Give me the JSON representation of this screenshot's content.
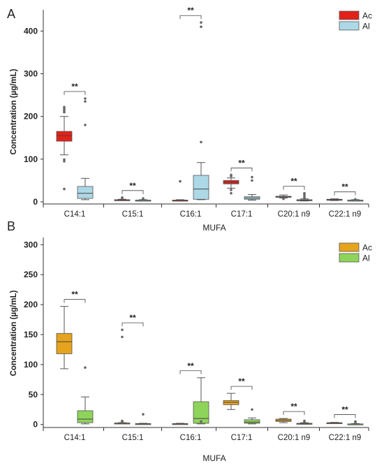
{
  "chart_data": [
    {
      "panel": "A",
      "type": "box",
      "xlabel": "MUFA",
      "ylabel": "Concentration (µg/mL)",
      "ylim": [
        -5,
        440
      ],
      "yticks": [
        0,
        100,
        200,
        300,
        400
      ],
      "categories": [
        "C14:1",
        "C15:1",
        "C16:1",
        "C17:1",
        "C20:1 n9",
        "C22:1 n9"
      ],
      "legend_position": "top-right",
      "significance": [
        "**",
        "**",
        "**",
        "**",
        "**",
        "**"
      ],
      "series": [
        {
          "name": "Ac",
          "color": "#e32119",
          "boxes": [
            {
              "min": 110,
              "q1": 142,
              "median": 155,
              "q3": 165,
              "max": 200,
              "outliers": [
                30,
                95,
                99,
                210,
                214,
                218,
                222
              ]
            },
            {
              "min": 3,
              "q1": 4,
              "median": 4.5,
              "q3": 5,
              "max": 6,
              "outliers": [
                8,
                10
              ]
            },
            {
              "min": 2,
              "q1": 3,
              "median": 3.5,
              "q3": 4,
              "max": 5,
              "outliers": [
                48
              ]
            },
            {
              "min": 32,
              "q1": 42,
              "median": 46,
              "q3": 50,
              "max": 56,
              "outliers": [
                20,
                28,
                60,
                63
              ]
            },
            {
              "min": 9,
              "q1": 11,
              "median": 12,
              "q3": 13,
              "max": 16,
              "outliers": [
                7
              ]
            },
            {
              "min": 3,
              "q1": 4,
              "median": 5,
              "q3": 6,
              "max": 7,
              "outliers": []
            }
          ]
        },
        {
          "name": "Al",
          "color": "#add8e6",
          "boxes": [
            {
              "min": 5,
              "q1": 8,
              "median": 20,
              "q3": 36,
              "max": 55,
              "outliers": [
                180,
                235,
                242
              ]
            },
            {
              "min": 2,
              "q1": 3,
              "median": 3.5,
              "q3": 4,
              "max": 5,
              "outliers": [
                6,
                8
              ]
            },
            {
              "min": 5,
              "q1": 6,
              "median": 30,
              "q3": 62,
              "max": 92,
              "outliers": [
                140,
                410,
                420
              ]
            },
            {
              "min": 4,
              "q1": 6,
              "median": 9,
              "q3": 12,
              "max": 17,
              "outliers": [
                50,
                58
              ]
            },
            {
              "min": 2,
              "q1": 3,
              "median": 4,
              "q3": 5,
              "max": 7,
              "outliers": [
                10,
                14,
                18,
                20
              ]
            },
            {
              "min": 2,
              "q1": 3,
              "median": 3.5,
              "q3": 4,
              "max": 5,
              "outliers": [
                6
              ]
            }
          ]
        }
      ]
    },
    {
      "panel": "B",
      "type": "box",
      "xlabel": "MUFA",
      "ylabel": "Concentration (µg/mL)",
      "ylim": [
        -5,
        305
      ],
      "yticks": [
        0,
        50,
        100,
        150,
        200,
        250,
        300
      ],
      "categories": [
        "C14:1",
        "C15:1",
        "C16:1",
        "C17:1",
        "C20:1 n9",
        "C22:1 n9"
      ],
      "legend_position": "top-right",
      "significance": [
        "**",
        "**",
        "**",
        "**",
        "**",
        "**"
      ],
      "series": [
        {
          "name": "Ac",
          "color": "#e6a31e",
          "boxes": [
            {
              "min": 93,
              "q1": 118,
              "median": 138,
              "q3": 152,
              "max": 197,
              "outliers": []
            },
            {
              "min": 1,
              "q1": 1.5,
              "median": 2,
              "q3": 2.5,
              "max": 3,
              "outliers": [
                4,
                5,
                6,
                146,
                158
              ]
            },
            {
              "min": 0.5,
              "q1": 1,
              "median": 1,
              "q3": 1.5,
              "max": 2,
              "outliers": []
            },
            {
              "min": 25,
              "q1": 33,
              "median": 37,
              "q3": 40,
              "max": 52,
              "outliers": []
            },
            {
              "min": 3,
              "q1": 5,
              "median": 7,
              "q3": 9,
              "max": 10,
              "outliers": []
            },
            {
              "min": 1.5,
              "q1": 2,
              "median": 2.5,
              "q3": 3,
              "max": 3.5,
              "outliers": []
            }
          ]
        },
        {
          "name": "Al",
          "color": "#8fd45a",
          "boxes": [
            {
              "min": 1,
              "q1": 3,
              "median": 9,
              "q3": 23,
              "max": 46,
              "outliers": [
                95
              ]
            },
            {
              "min": 0.5,
              "q1": 1,
              "median": 1,
              "q3": 1.5,
              "max": 2,
              "outliers": [
                17
              ]
            },
            {
              "min": 1,
              "q1": 2,
              "median": 10,
              "q3": 38,
              "max": 78,
              "outliers": [
                5
              ]
            },
            {
              "min": 1,
              "q1": 2,
              "median": 4,
              "q3": 8,
              "max": 11,
              "outliers": [
                25
              ]
            },
            {
              "min": 0.5,
              "q1": 1,
              "median": 1.5,
              "q3": 2,
              "max": 3,
              "outliers": [
                5,
                6
              ]
            },
            {
              "min": 0.3,
              "q1": 0.5,
              "median": 0.8,
              "q3": 1,
              "max": 1.5,
              "outliers": [
                3,
                5
              ]
            }
          ]
        }
      ]
    }
  ]
}
